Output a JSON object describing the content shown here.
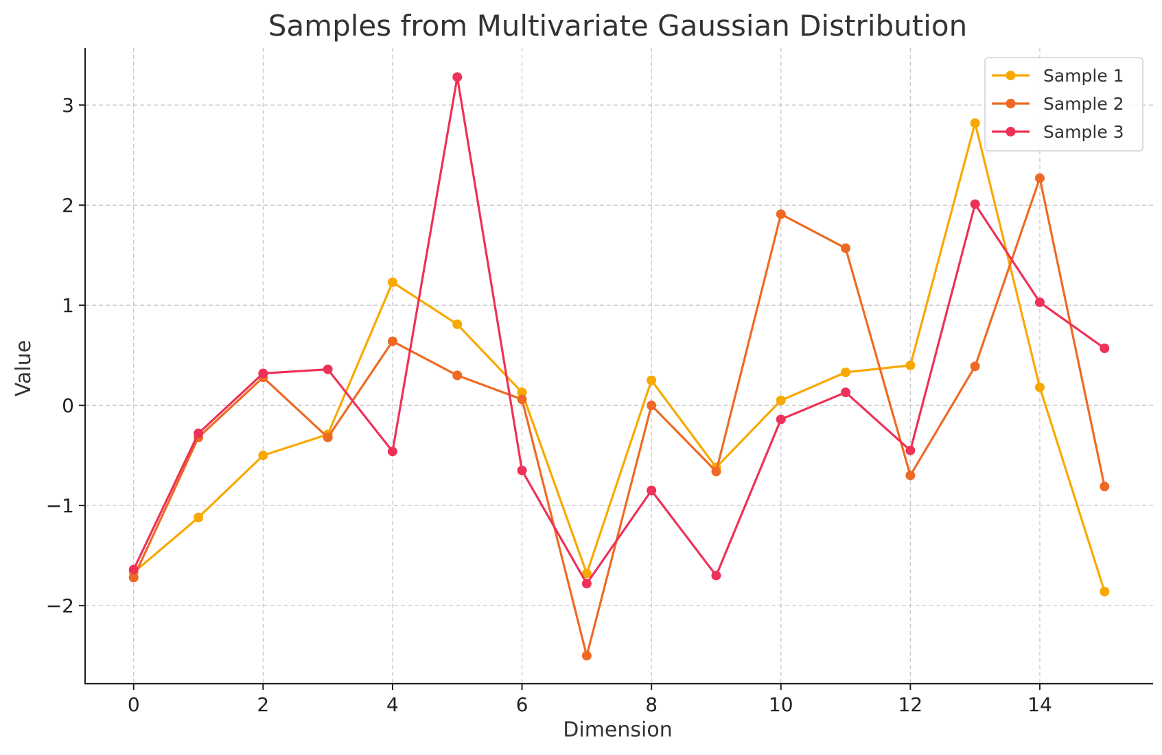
{
  "chart_data": {
    "type": "line",
    "title": "Samples from Multivariate Gaussian Distribution",
    "xlabel": "Dimension",
    "ylabel": "Value",
    "xlim": [
      -0.75,
      15.75
    ],
    "ylim": [
      -2.78,
      3.57
    ],
    "xticks": [
      0,
      2,
      4,
      6,
      8,
      10,
      12,
      14
    ],
    "yticks": [
      -2,
      -1,
      0,
      1,
      2,
      3
    ],
    "ytick_labels": [
      "−2",
      "−1",
      "0",
      "1",
      "2",
      "3"
    ],
    "grid": true,
    "legend_position": "top-right",
    "x": [
      0,
      1,
      2,
      3,
      4,
      5,
      6,
      7,
      8,
      9,
      10,
      11,
      12,
      13,
      14,
      15
    ],
    "series": [
      {
        "name": "Sample 1",
        "color": "#F9A800",
        "values": [
          -1.67,
          -1.12,
          -0.5,
          -0.29,
          1.23,
          0.81,
          0.13,
          -1.68,
          0.25,
          -0.62,
          0.05,
          0.33,
          0.4,
          2.82,
          0.18,
          -1.86
        ]
      },
      {
        "name": "Sample 2",
        "color": "#EE6A24",
        "values": [
          -1.72,
          -0.32,
          0.28,
          -0.32,
          0.64,
          0.3,
          0.06,
          -2.5,
          0.0,
          -0.66,
          1.91,
          1.57,
          -0.7,
          0.39,
          2.27,
          -0.81
        ]
      },
      {
        "name": "Sample 3",
        "color": "#EE3158",
        "values": [
          -1.64,
          -0.28,
          0.32,
          0.36,
          -0.46,
          3.28,
          -0.65,
          -1.78,
          -0.85,
          -1.7,
          -0.14,
          0.13,
          -0.45,
          2.01,
          1.03,
          0.57
        ]
      }
    ]
  }
}
